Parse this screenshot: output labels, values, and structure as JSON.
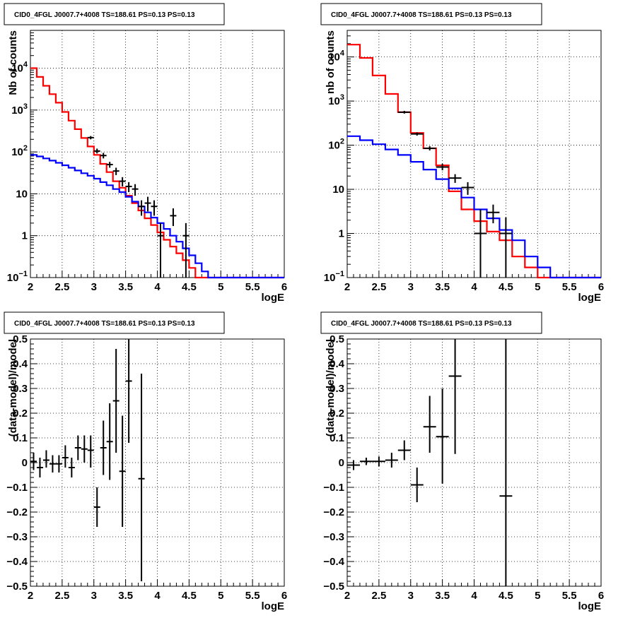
{
  "colors": {
    "data": "#000000",
    "total_model": "#ff0000",
    "source_model": "#0000ff",
    "grid": "#000000"
  },
  "chart_data": [
    {
      "type": "line",
      "title": "CID0_4FGL J0007.7+4008 TS=188.61 PS=0.13 PS=0.13",
      "xlabel": "logE",
      "ylabel": "Nb of counts",
      "xlim": [
        2,
        6
      ],
      "ylim": [
        0.1,
        80000
      ],
      "yscale": "log",
      "grid": true,
      "x_ticks": [
        "2",
        "2.5",
        "3",
        "3.5",
        "4",
        "4.5",
        "5",
        "5.5",
        "6"
      ],
      "y_ticks": [
        {
          "v": 0.1,
          "b": "10",
          "e": "−1"
        },
        {
          "v": 1,
          "b": "1",
          "e": ""
        },
        {
          "v": 10,
          "b": "10",
          "e": ""
        },
        {
          "v": 100,
          "b": "10",
          "e": "2"
        },
        {
          "v": 1000,
          "b": "10",
          "e": "3"
        },
        {
          "v": 10000,
          "b": "10",
          "e": "4"
        }
      ],
      "series": [
        {
          "kind": "step",
          "color": "#ff0000",
          "x_start": 2.0,
          "bin_width": 0.1,
          "values": [
            10000,
            6200,
            3800,
            2400,
            1500,
            900,
            560,
            350,
            215,
            135,
            85,
            52,
            33,
            20,
            14,
            9,
            6,
            4,
            2.6,
            1.8,
            1.2,
            0.8,
            0.55,
            0.38,
            0.26,
            0.17,
            0.1,
            0.1,
            0.1,
            0.1,
            0.1,
            0.1,
            0.1,
            0.1,
            0.1,
            0.1,
            0.1,
            0.1,
            0.1,
            0.1
          ]
        },
        {
          "kind": "step",
          "color": "#0000ff",
          "x_start": 2.0,
          "bin_width": 0.1,
          "values": [
            85,
            78,
            70,
            62,
            55,
            48,
            42,
            36,
            31,
            27,
            23,
            19,
            16,
            13,
            11,
            8.5,
            6.5,
            5,
            3.6,
            2.7,
            2.0,
            1.45,
            1.0,
            0.72,
            0.5,
            0.34,
            0.22,
            0.14,
            0.1,
            0.1,
            0.1,
            0.1,
            0.1,
            0.1,
            0.1,
            0.1,
            0.1,
            0.1,
            0.1,
            0.1
          ]
        },
        {
          "kind": "points",
          "color": "#000000",
          "points": [
            {
              "x": 2.95,
              "y": 220,
              "xerr": 0.05,
              "ylo": 200,
              "yhi": 240
            },
            {
              "x": 3.05,
              "y": 105,
              "xerr": 0.05,
              "ylo": 92,
              "yhi": 120
            },
            {
              "x": 3.15,
              "y": 82,
              "xerr": 0.05,
              "ylo": 70,
              "yhi": 95
            },
            {
              "x": 3.25,
              "y": 50,
              "xerr": 0.05,
              "ylo": 42,
              "yhi": 58
            },
            {
              "x": 3.35,
              "y": 35,
              "xerr": 0.05,
              "ylo": 28,
              "yhi": 42
            },
            {
              "x": 3.45,
              "y": 20,
              "xerr": 0.05,
              "ylo": 15,
              "yhi": 25
            },
            {
              "x": 3.55,
              "y": 15,
              "xerr": 0.05,
              "ylo": 11,
              "yhi": 19
            },
            {
              "x": 3.65,
              "y": 13,
              "xerr": 0.05,
              "ylo": 9,
              "yhi": 17
            },
            {
              "x": 3.75,
              "y": 5,
              "xerr": 0.05,
              "ylo": 3,
              "yhi": 7
            },
            {
              "x": 3.85,
              "y": 6,
              "xerr": 0.05,
              "ylo": 3.8,
              "yhi": 8.5
            },
            {
              "x": 3.95,
              "y": 5,
              "xerr": 0.05,
              "ylo": 3,
              "yhi": 7
            },
            {
              "x": 4.05,
              "y": 1,
              "xerr": 0.05,
              "ylo": 0.1,
              "yhi": 2
            },
            {
              "x": 4.25,
              "y": 3,
              "xerr": 0.05,
              "ylo": 1.7,
              "yhi": 4.5
            },
            {
              "x": 4.45,
              "y": 1,
              "xerr": 0.05,
              "ylo": 0.1,
              "yhi": 2
            }
          ]
        }
      ]
    },
    {
      "type": "line",
      "title": "CID0_4FGL J0007.7+4008 TS=188.61 PS=0.13 PS=0.13",
      "xlabel": "logE",
      "ylabel": "nb of counts",
      "xlim": [
        2,
        6
      ],
      "ylim": [
        0.1,
        40000
      ],
      "yscale": "log",
      "grid": true,
      "x_ticks": [
        "2",
        "2.5",
        "3",
        "3.5",
        "4",
        "4.5",
        "5",
        "5.5",
        "6"
      ],
      "y_ticks": [
        {
          "v": 0.1,
          "b": "10",
          "e": "−1"
        },
        {
          "v": 1,
          "b": "1",
          "e": ""
        },
        {
          "v": 10,
          "b": "10",
          "e": ""
        },
        {
          "v": 100,
          "b": "10",
          "e": "2"
        },
        {
          "v": 1000,
          "b": "10",
          "e": "3"
        },
        {
          "v": 10000,
          "b": "10",
          "e": "4"
        }
      ],
      "series": [
        {
          "kind": "step",
          "color": "#ff0000",
          "x_start": 2.0,
          "bin_width": 0.2,
          "values": [
            19000,
            9500,
            3800,
            1450,
            560,
            190,
            85,
            35,
            9,
            3.5,
            1.9,
            1.1,
            0.7,
            0.3,
            0.17,
            0.1,
            0.1,
            0.1,
            0.1,
            0.1
          ]
        },
        {
          "kind": "step",
          "color": "#0000ff",
          "x_start": 2.0,
          "bin_width": 0.2,
          "values": [
            160,
            130,
            105,
            80,
            60,
            42,
            28,
            17,
            10.5,
            6.5,
            3.5,
            2.2,
            1.2,
            0.7,
            0.3,
            0.17,
            0.1,
            0.1,
            0.1,
            0.1
          ]
        },
        {
          "kind": "points",
          "color": "#000000",
          "points": [
            {
              "x": 2.9,
              "y": 560,
              "xerr": 0.1,
              "ylo": 520,
              "yhi": 600
            },
            {
              "x": 3.1,
              "y": 180,
              "xerr": 0.1,
              "ylo": 165,
              "yhi": 195
            },
            {
              "x": 3.3,
              "y": 85,
              "xerr": 0.1,
              "ylo": 76,
              "yhi": 95
            },
            {
              "x": 3.5,
              "y": 32,
              "xerr": 0.1,
              "ylo": 27,
              "yhi": 38
            },
            {
              "x": 3.7,
              "y": 18,
              "xerr": 0.1,
              "ylo": 14,
              "yhi": 22
            },
            {
              "x": 3.9,
              "y": 11,
              "xerr": 0.1,
              "ylo": 7.5,
              "yhi": 14.5
            },
            {
              "x": 4.1,
              "y": 1,
              "xerr": 0.1,
              "ylo": 0.1,
              "yhi": 3.5
            },
            {
              "x": 4.3,
              "y": 3,
              "xerr": 0.1,
              "ylo": 1.7,
              "yhi": 4.5
            },
            {
              "x": 4.5,
              "y": 1,
              "xerr": 0.1,
              "ylo": 0.1,
              "yhi": 2.3
            }
          ]
        }
      ]
    },
    {
      "type": "scatter",
      "title": "CID0_4FGL J0007.7+4008 TS=188.61 PS=0.13 PS=0.13",
      "xlabel": "logE",
      "ylabel": "(data-model)/model",
      "xlim": [
        2,
        6
      ],
      "ylim": [
        -0.5,
        0.5
      ],
      "yscale": "linear",
      "grid": true,
      "x_ticks": [
        "2",
        "2.5",
        "3",
        "3.5",
        "4",
        "4.5",
        "5",
        "5.5",
        "6"
      ],
      "y_ticks": [
        {
          "v": -0.5,
          "b": "−0.5",
          "e": ""
        },
        {
          "v": -0.4,
          "b": "−0.4",
          "e": ""
        },
        {
          "v": -0.3,
          "b": "−0.3",
          "e": ""
        },
        {
          "v": -0.2,
          "b": "−0.2",
          "e": ""
        },
        {
          "v": -0.1,
          "b": "−0.1",
          "e": ""
        },
        {
          "v": 0,
          "b": "0",
          "e": ""
        },
        {
          "v": 0.1,
          "b": "0.1",
          "e": ""
        },
        {
          "v": 0.2,
          "b": "0.2",
          "e": ""
        },
        {
          "v": 0.3,
          "b": "0.3",
          "e": ""
        },
        {
          "v": 0.4,
          "b": "0.4",
          "e": ""
        },
        {
          "v": 0.5,
          "b": "0.5",
          "e": ""
        }
      ],
      "series": [
        {
          "kind": "points",
          "color": "#000000",
          "points": [
            {
              "x": 2.05,
              "y": 0.005,
              "xerr": 0.05,
              "ylo": -0.03,
              "yhi": 0.04
            },
            {
              "x": 2.15,
              "y": -0.02,
              "xerr": 0.05,
              "ylo": -0.06,
              "yhi": 0.02
            },
            {
              "x": 2.25,
              "y": 0.01,
              "xerr": 0.05,
              "ylo": -0.02,
              "yhi": 0.05
            },
            {
              "x": 2.35,
              "y": -0.005,
              "xerr": 0.05,
              "ylo": -0.04,
              "yhi": 0.03
            },
            {
              "x": 2.45,
              "y": -0.005,
              "xerr": 0.05,
              "ylo": -0.04,
              "yhi": 0.03
            },
            {
              "x": 2.55,
              "y": 0.02,
              "xerr": 0.05,
              "ylo": -0.02,
              "yhi": 0.07
            },
            {
              "x": 2.65,
              "y": -0.02,
              "xerr": 0.05,
              "ylo": -0.06,
              "yhi": 0.02
            },
            {
              "x": 2.75,
              "y": 0.06,
              "xerr": 0.05,
              "ylo": 0.01,
              "yhi": 0.11
            },
            {
              "x": 2.85,
              "y": 0.055,
              "xerr": 0.05,
              "ylo": 0.0,
              "yhi": 0.11
            },
            {
              "x": 2.95,
              "y": 0.05,
              "xerr": 0.05,
              "ylo": -0.02,
              "yhi": 0.11
            },
            {
              "x": 3.05,
              "y": -0.18,
              "xerr": 0.05,
              "ylo": -0.26,
              "yhi": -0.1
            },
            {
              "x": 3.15,
              "y": 0.06,
              "xerr": 0.05,
              "ylo": -0.05,
              "yhi": 0.17
            },
            {
              "x": 3.25,
              "y": 0.085,
              "xerr": 0.05,
              "ylo": -0.07,
              "yhi": 0.24
            },
            {
              "x": 3.35,
              "y": 0.25,
              "xerr": 0.05,
              "ylo": 0.04,
              "yhi": 0.46
            },
            {
              "x": 3.45,
              "y": -0.035,
              "xerr": 0.05,
              "ylo": -0.26,
              "yhi": 0.19
            },
            {
              "x": 3.55,
              "y": 0.33,
              "xerr": 0.05,
              "ylo": 0.08,
              "yhi": 0.5
            },
            {
              "x": 3.75,
              "y": -0.065,
              "xerr": 0.05,
              "ylo": -0.48,
              "yhi": 0.36
            }
          ]
        }
      ]
    },
    {
      "type": "scatter",
      "title": "CID0_4FGL J0007.7+4008 TS=188.61 PS=0.13 PS=0.13",
      "xlabel": "logE",
      "ylabel": "(data-model)/model",
      "xlim": [
        2,
        6
      ],
      "ylim": [
        -0.5,
        0.5
      ],
      "yscale": "linear",
      "grid": true,
      "x_ticks": [
        "2",
        "2.5",
        "3",
        "3.5",
        "4",
        "4.5",
        "5",
        "5.5",
        "6"
      ],
      "y_ticks": [
        {
          "v": -0.5,
          "b": "−0.5",
          "e": ""
        },
        {
          "v": -0.4,
          "b": "−0.4",
          "e": ""
        },
        {
          "v": -0.3,
          "b": "−0.3",
          "e": ""
        },
        {
          "v": -0.2,
          "b": "−0.2",
          "e": ""
        },
        {
          "v": -0.1,
          "b": "−0.1",
          "e": ""
        },
        {
          "v": 0,
          "b": "0",
          "e": ""
        },
        {
          "v": 0.1,
          "b": "0.1",
          "e": ""
        },
        {
          "v": 0.2,
          "b": "0.2",
          "e": ""
        },
        {
          "v": 0.3,
          "b": "0.3",
          "e": ""
        },
        {
          "v": 0.4,
          "b": "0.4",
          "e": ""
        },
        {
          "v": 0.5,
          "b": "0.5",
          "e": ""
        }
      ],
      "series": [
        {
          "kind": "points",
          "color": "#000000",
          "points": [
            {
              "x": 2.1,
              "y": -0.01,
              "xerr": 0.1,
              "ylo": -0.03,
              "yhi": 0.01
            },
            {
              "x": 2.3,
              "y": 0.005,
              "xerr": 0.1,
              "ylo": -0.01,
              "yhi": 0.02
            },
            {
              "x": 2.5,
              "y": 0.005,
              "xerr": 0.1,
              "ylo": -0.015,
              "yhi": 0.025
            },
            {
              "x": 2.7,
              "y": 0.01,
              "xerr": 0.1,
              "ylo": -0.02,
              "yhi": 0.04
            },
            {
              "x": 2.9,
              "y": 0.05,
              "xerr": 0.1,
              "ylo": 0.01,
              "yhi": 0.09
            },
            {
              "x": 3.1,
              "y": -0.09,
              "xerr": 0.1,
              "ylo": -0.16,
              "yhi": -0.02
            },
            {
              "x": 3.3,
              "y": 0.145,
              "xerr": 0.1,
              "ylo": 0.04,
              "yhi": 0.27
            },
            {
              "x": 3.5,
              "y": 0.105,
              "xerr": 0.1,
              "ylo": -0.085,
              "yhi": 0.3
            },
            {
              "x": 3.7,
              "y": 0.35,
              "xerr": 0.1,
              "ylo": 0.035,
              "yhi": 0.5
            },
            {
              "x": 4.5,
              "y": -0.135,
              "xerr": 0.1,
              "ylo": -0.5,
              "yhi": 0.5
            }
          ]
        }
      ]
    }
  ]
}
